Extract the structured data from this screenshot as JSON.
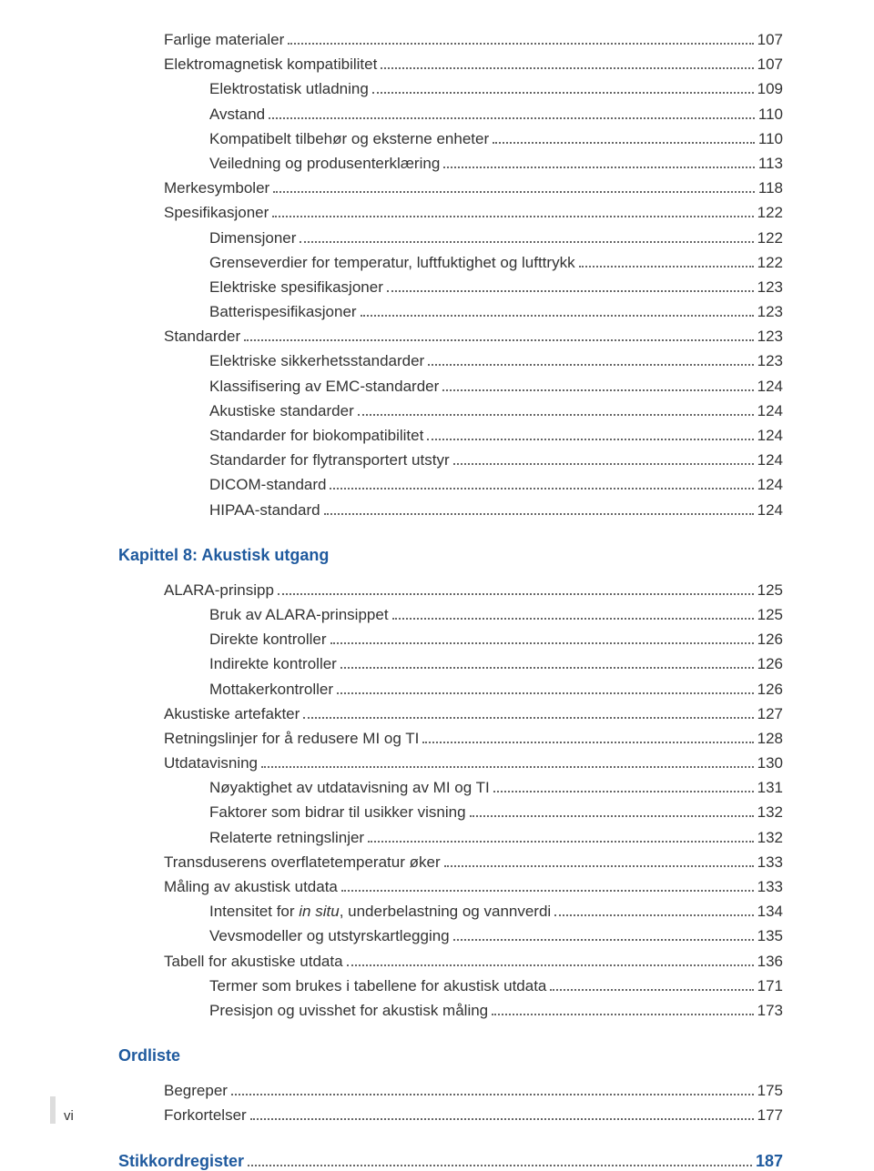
{
  "colors": {
    "heading_blue": "#1f5a9e",
    "text": "#333333",
    "dots": "#666666",
    "background": "#ffffff",
    "footer_bar": "#dddddd"
  },
  "typography": {
    "body_fontsize": 17,
    "heading_fontsize": 18,
    "font_family": "Segoe UI"
  },
  "sections": [
    {
      "entries": [
        {
          "indent": 1,
          "label": "Farlige materialer",
          "page": "107"
        },
        {
          "indent": 1,
          "label": "Elektromagnetisk kompatibilitet",
          "page": "107"
        },
        {
          "indent": 2,
          "label": "Elektrostatisk utladning",
          "page": "109"
        },
        {
          "indent": 2,
          "label": "Avstand",
          "page": "110"
        },
        {
          "indent": 2,
          "label": "Kompatibelt tilbehør og eksterne enheter",
          "page": "110"
        },
        {
          "indent": 2,
          "label": "Veiledning og produsenterklæring",
          "page": "113"
        },
        {
          "indent": 1,
          "label": "Merkesymboler",
          "page": "118"
        },
        {
          "indent": 1,
          "label": "Spesifikasjoner",
          "page": "122"
        },
        {
          "indent": 2,
          "label": "Dimensjoner",
          "page": "122"
        },
        {
          "indent": 2,
          "label": "Grenseverdier for temperatur, luftfuktighet og lufttrykk",
          "page": "122"
        },
        {
          "indent": 2,
          "label": "Elektriske spesifikasjoner",
          "page": "123"
        },
        {
          "indent": 2,
          "label": "Batterispesifikasjoner",
          "page": "123"
        },
        {
          "indent": 1,
          "label": "Standarder",
          "page": "123"
        },
        {
          "indent": 2,
          "label": "Elektriske sikkerhetsstandarder",
          "page": "123"
        },
        {
          "indent": 2,
          "label": "Klassifisering av EMC-standarder",
          "page": "124"
        },
        {
          "indent": 2,
          "label": "Akustiske standarder",
          "page": "124"
        },
        {
          "indent": 2,
          "label": "Standarder for biokompatibilitet",
          "page": "124"
        },
        {
          "indent": 2,
          "label": "Standarder for flytransportert utstyr",
          "page": "124"
        },
        {
          "indent": 2,
          "label": "DICOM-standard",
          "page": "124"
        },
        {
          "indent": 2,
          "label": "HIPAA-standard",
          "page": "124"
        }
      ]
    },
    {
      "heading": "Kapittel 8: Akustisk utgang",
      "entries": [
        {
          "indent": 1,
          "label": "ALARA-prinsipp",
          "page": "125"
        },
        {
          "indent": 2,
          "label": "Bruk av ALARA-prinsippet",
          "page": "125"
        },
        {
          "indent": 2,
          "label": "Direkte kontroller",
          "page": "126"
        },
        {
          "indent": 2,
          "label": "Indirekte kontroller",
          "page": "126"
        },
        {
          "indent": 2,
          "label": "Mottakerkontroller",
          "page": "126"
        },
        {
          "indent": 1,
          "label": "Akustiske artefakter",
          "page": "127"
        },
        {
          "indent": 1,
          "label": "Retningslinjer for å redusere MI og TI",
          "page": "128"
        },
        {
          "indent": 1,
          "label": "Utdatavisning",
          "page": "130"
        },
        {
          "indent": 2,
          "label": "Nøyaktighet av utdatavisning av MI og TI",
          "page": "131"
        },
        {
          "indent": 2,
          "label": "Faktorer som bidrar til usikker visning",
          "page": "132"
        },
        {
          "indent": 2,
          "label": "Relaterte retningslinjer",
          "page": "132"
        },
        {
          "indent": 1,
          "label": "Transduserens overflatetemperatur øker",
          "page": "133"
        },
        {
          "indent": 1,
          "label": "Måling av akustisk utdata",
          "page": "133"
        },
        {
          "indent": 2,
          "label_pre": "Intensitet for ",
          "label_italic": "in situ",
          "label_post": ", underbelastning og vannverdi",
          "page": "134"
        },
        {
          "indent": 2,
          "label": "Vevsmodeller og utstyrskartlegging",
          "page": "135"
        },
        {
          "indent": 1,
          "label": "Tabell for akustiske utdata",
          "page": "136"
        },
        {
          "indent": 2,
          "label": "Termer som brukes i tabellene for akustisk utdata",
          "page": "171"
        },
        {
          "indent": 2,
          "label": "Presisjon og uvisshet for akustisk måling",
          "page": "173"
        }
      ]
    },
    {
      "heading": "Ordliste",
      "entries": [
        {
          "indent": 1,
          "label": "Begreper",
          "page": "175"
        },
        {
          "indent": 1,
          "label": "Forkortelser",
          "page": "177"
        }
      ]
    }
  ],
  "stikkord": {
    "label": "Stikkordregister",
    "page": "187"
  },
  "footer_page": "vi"
}
